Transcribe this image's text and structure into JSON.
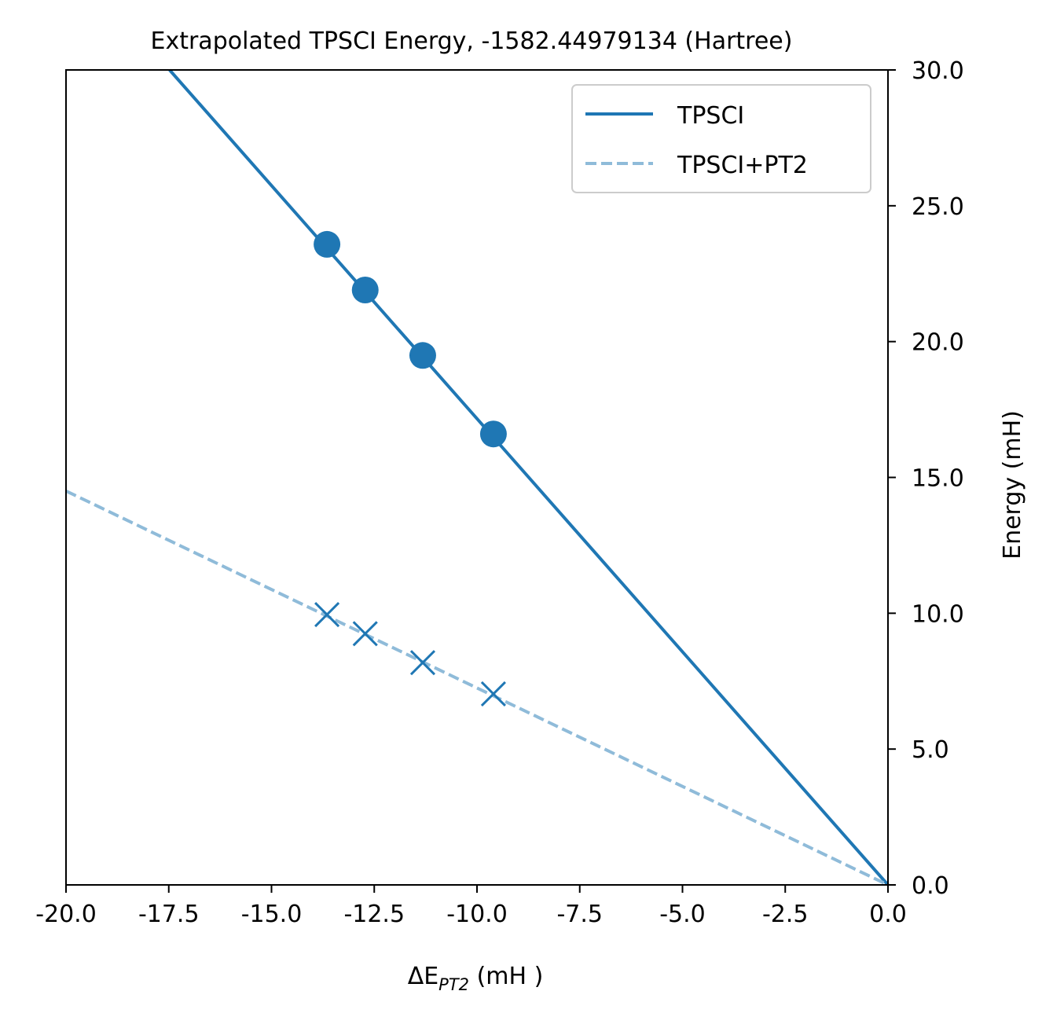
{
  "chart_data": {
    "type": "line",
    "title": "Extrapolated TPSCI Energy, -1582.44979134 (Hartree)",
    "xlabel": "ΔE",
    "xlabel_sub": "PT2",
    "xlabel_unit": " (mH )",
    "ylabel": "Energy (mH)",
    "y_axis_side": "right",
    "xlim": [
      -20.0,
      0.0
    ],
    "ylim": [
      0.0,
      30.0
    ],
    "x_ticks": [
      -20.0,
      -17.5,
      -15.0,
      -12.5,
      -10.0,
      -7.5,
      -5.0,
      -2.5,
      0.0
    ],
    "x_tick_labels": [
      "-20.0",
      "-17.5",
      "-15.0",
      "-12.5",
      "-10.0",
      "-7.5",
      "-5.0",
      "-2.5",
      "0.0"
    ],
    "y_ticks": [
      0.0,
      5.0,
      10.0,
      15.0,
      20.0,
      25.0,
      30.0
    ],
    "y_tick_labels": [
      "0.0",
      "5.0",
      "10.0",
      "15.0",
      "20.0",
      "25.0",
      "30.0"
    ],
    "grid": false,
    "legend_position": "top-right",
    "series": [
      {
        "name": "TPSCI",
        "style": "solid",
        "color": "#1f77b4",
        "fit_line": [
          [
            -17.48,
            30.0
          ],
          [
            0.0,
            0.0
          ]
        ],
        "marker": "circle",
        "points": [
          [
            -13.65,
            23.58
          ],
          [
            -12.72,
            21.9
          ],
          [
            -11.32,
            19.49
          ],
          [
            -9.6,
            16.6
          ]
        ]
      },
      {
        "name": "TPSCI+PT2",
        "style": "dashed",
        "color": "#8fbbd9",
        "fit_line": [
          [
            -20.0,
            14.5
          ],
          [
            0.0,
            0.0
          ]
        ],
        "marker": "x",
        "marker_color": "#1f77b4",
        "points": [
          [
            -13.65,
            9.95
          ],
          [
            -12.72,
            9.25
          ],
          [
            -11.32,
            8.18
          ],
          [
            -9.6,
            7.03
          ]
        ]
      }
    ]
  }
}
